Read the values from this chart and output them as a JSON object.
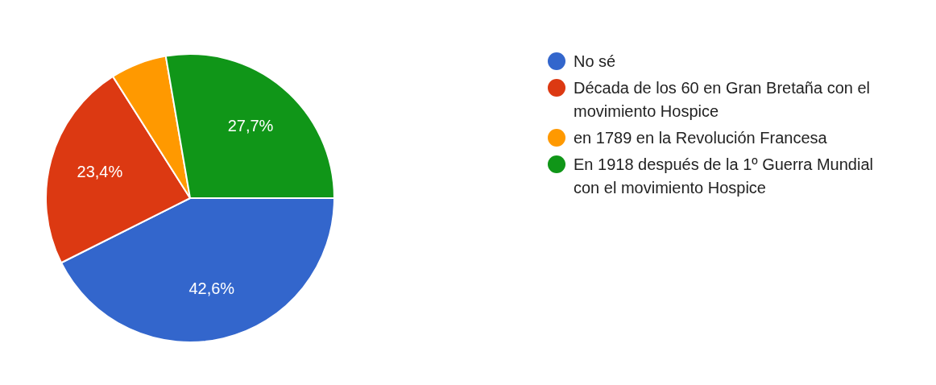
{
  "chart_data": {
    "type": "pie",
    "categories": [
      "No sé",
      "Década de los 60 en Gran Bretaña con el movimiento Hospice",
      "en 1789 en la Revolución Francesa",
      "En 1918 después de la 1º Guerra Mundial con el movimiento Hospice"
    ],
    "values": [
      42.6,
      23.4,
      6.3,
      27.7
    ],
    "colors": [
      "#3366cc",
      "#dc3912",
      "#ff9900",
      "#109618"
    ],
    "value_labels": [
      "42,6%",
      "23,4%",
      null,
      "27,7%"
    ],
    "legend": "right"
  }
}
